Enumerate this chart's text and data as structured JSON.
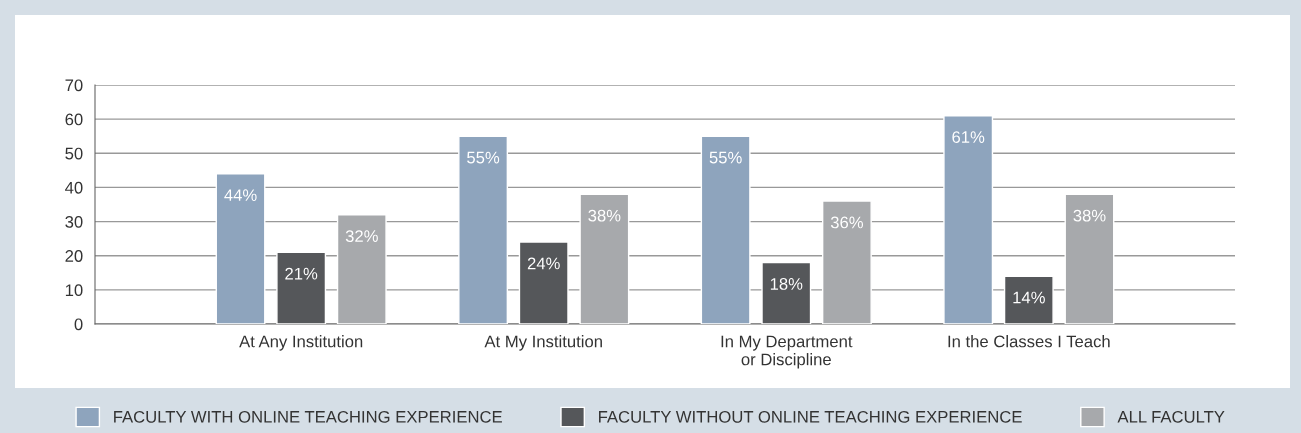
{
  "chart_data": {
    "type": "bar",
    "categories": [
      "At Any Institution",
      "At My Institution",
      "In My Department\nor Discipline",
      "In the Classes I Teach"
    ],
    "series": [
      {
        "name": "FACULTY WITH ONLINE TEACHING EXPERIENCE",
        "color": "#8ea4bd",
        "values": [
          44,
          55,
          55,
          61
        ],
        "value_labels": [
          "44%",
          "55%",
          "55%",
          "61%"
        ]
      },
      {
        "name": "FACULTY WITHOUT ONLINE TEACHING EXPERIENCE",
        "color": "#55575a",
        "values": [
          21,
          24,
          18,
          14
        ],
        "value_labels": [
          "21%",
          "24%",
          "18%",
          "14%"
        ]
      },
      {
        "name": "ALL FACULTY",
        "color": "#a7a9ac",
        "values": [
          32,
          38,
          36,
          38
        ],
        "value_labels": [
          "32%",
          "38%",
          "36%",
          "38%"
        ]
      }
    ],
    "ylim": [
      0,
      70
    ],
    "yticks": [
      0,
      10,
      20,
      30,
      40,
      50,
      60,
      70
    ],
    "grid": "y",
    "legend": "bottom"
  }
}
